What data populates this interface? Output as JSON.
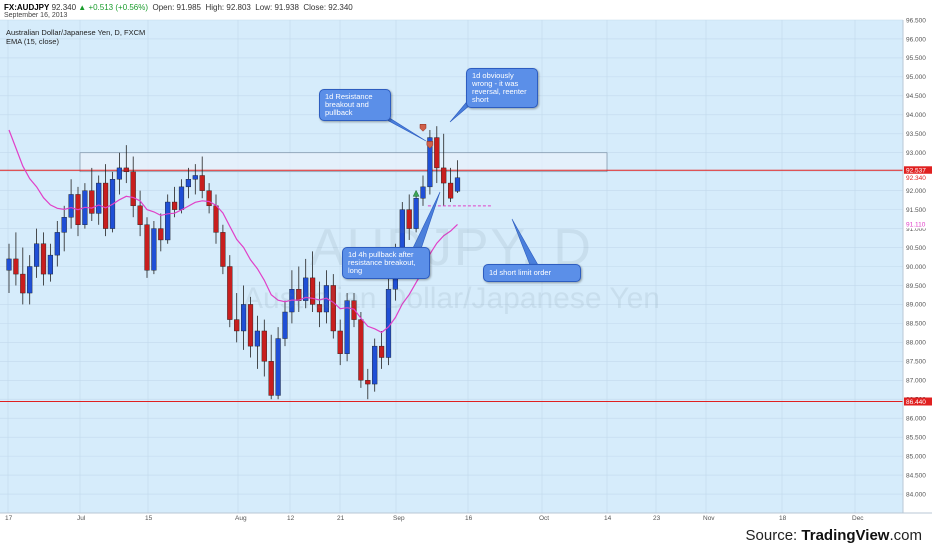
{
  "header": {
    "symbol": "FX:AUDJPY",
    "last": "92.340",
    "change": "+0.513 (+0.56%)",
    "open_label": "Open:",
    "open": "91.985",
    "high_label": "High:",
    "high": "92.803",
    "low_label": "Low:",
    "low": "91.938",
    "close_label": "Close:",
    "close": "92.340",
    "date": "September 16, 2013"
  },
  "legend": {
    "title": "Australian Dollar/Japanese Yen, D, FXCM",
    "ema": "EMA (15, close)"
  },
  "watermark": {
    "symbol": "AUDJPY, D",
    "name": "Australian Dollar/Japanese Yen"
  },
  "annotations": [
    {
      "id": "resistance",
      "text": "1d Resistance breakout and pullback"
    },
    {
      "id": "wrong",
      "text": "1d obviously wrong - it was reversal, reenter short"
    },
    {
      "id": "pullback",
      "text": "1d 4h pullback after resistance breakout, long"
    },
    {
      "id": "limit",
      "text": "1d short limit order"
    }
  ],
  "footer": {
    "source_prefix": "Source: ",
    "source_brand": "TradingView",
    "source_suffix": ".com"
  },
  "colors": {
    "up": "#1f4fd6",
    "down": "#c81e1e",
    "ema": "#e040c8",
    "hline": "#e02020",
    "zone_fill": "#e8f2fb",
    "zone_stroke": "#7a8ea3",
    "background": "#d6ecfb",
    "price_tag": "#e02020",
    "ema_tag": "#e040c8"
  },
  "chart_data": {
    "type": "candlestick",
    "symbol": "FX:AUDJPY",
    "timeframe": "D",
    "y_range": [
      83.5,
      96.5
    ],
    "y_ticks": [
      "96.500",
      "96.000",
      "95.500",
      "95.000",
      "94.500",
      "94.000",
      "93.500",
      "93.000",
      "92.500",
      "92.000",
      "91.500",
      "91.000",
      "90.500",
      "90.000",
      "89.500",
      "89.000",
      "88.500",
      "88.000",
      "87.500",
      "87.000",
      "86.500",
      "86.000",
      "85.500",
      "85.000",
      "84.500",
      "84.000"
    ],
    "x_ticks": [
      "17",
      "Jul",
      "15",
      "Aug",
      "12",
      "21",
      "Sep",
      "16",
      "Oct",
      "14",
      "23",
      "Nov",
      "18",
      "Dec"
    ],
    "price_labels": {
      "resistance_line": "92.537",
      "last_price": "92.340",
      "ema_value": "91.110",
      "support_line": "86.440"
    },
    "horizontal_lines": [
      92.537,
      86.44
    ],
    "resistance_zone": [
      92.5,
      93.0
    ],
    "limit_order_level": 91.6,
    "candles": [
      {
        "o": 89.9,
        "h": 90.6,
        "l": 89.3,
        "c": 90.2
      },
      {
        "o": 90.2,
        "h": 90.9,
        "l": 89.5,
        "c": 89.8
      },
      {
        "o": 89.8,
        "h": 90.5,
        "l": 89.0,
        "c": 89.3
      },
      {
        "o": 89.3,
        "h": 90.3,
        "l": 89.0,
        "c": 90.0
      },
      {
        "o": 90.0,
        "h": 91.0,
        "l": 89.7,
        "c": 90.6
      },
      {
        "o": 90.6,
        "h": 90.9,
        "l": 89.5,
        "c": 89.8
      },
      {
        "o": 89.8,
        "h": 90.6,
        "l": 89.6,
        "c": 90.3
      },
      {
        "o": 90.3,
        "h": 91.2,
        "l": 90.0,
        "c": 90.9
      },
      {
        "o": 90.9,
        "h": 91.6,
        "l": 90.4,
        "c": 91.3
      },
      {
        "o": 91.3,
        "h": 92.3,
        "l": 91.0,
        "c": 91.9
      },
      {
        "o": 91.9,
        "h": 92.1,
        "l": 90.8,
        "c": 91.1
      },
      {
        "o": 91.1,
        "h": 92.2,
        "l": 91.0,
        "c": 92.0
      },
      {
        "o": 92.0,
        "h": 92.6,
        "l": 91.2,
        "c": 91.4
      },
      {
        "o": 91.4,
        "h": 92.4,
        "l": 91.1,
        "c": 92.2
      },
      {
        "o": 92.2,
        "h": 92.7,
        "l": 90.8,
        "c": 91.0
      },
      {
        "o": 91.0,
        "h": 92.5,
        "l": 90.9,
        "c": 92.3
      },
      {
        "o": 92.3,
        "h": 93.0,
        "l": 91.9,
        "c": 92.6
      },
      {
        "o": 92.6,
        "h": 93.2,
        "l": 92.2,
        "c": 92.5
      },
      {
        "o": 92.5,
        "h": 92.9,
        "l": 91.3,
        "c": 91.6
      },
      {
        "o": 91.6,
        "h": 92.0,
        "l": 90.8,
        "c": 91.1
      },
      {
        "o": 91.1,
        "h": 91.3,
        "l": 89.7,
        "c": 89.9
      },
      {
        "o": 89.9,
        "h": 91.2,
        "l": 89.8,
        "c": 91.0
      },
      {
        "o": 91.0,
        "h": 91.4,
        "l": 90.4,
        "c": 90.7
      },
      {
        "o": 90.7,
        "h": 91.9,
        "l": 90.6,
        "c": 91.7
      },
      {
        "o": 91.7,
        "h": 92.1,
        "l": 91.3,
        "c": 91.5
      },
      {
        "o": 91.5,
        "h": 92.3,
        "l": 91.4,
        "c": 92.1
      },
      {
        "o": 92.1,
        "h": 92.6,
        "l": 91.8,
        "c": 92.3
      },
      {
        "o": 92.3,
        "h": 92.7,
        "l": 91.9,
        "c": 92.4
      },
      {
        "o": 92.4,
        "h": 92.9,
        "l": 91.8,
        "c": 92.0
      },
      {
        "o": 92.0,
        "h": 92.2,
        "l": 91.4,
        "c": 91.6
      },
      {
        "o": 91.6,
        "h": 91.9,
        "l": 90.6,
        "c": 90.9
      },
      {
        "o": 90.9,
        "h": 91.1,
        "l": 89.8,
        "c": 90.0
      },
      {
        "o": 90.0,
        "h": 90.3,
        "l": 88.4,
        "c": 88.6
      },
      {
        "o": 88.6,
        "h": 89.3,
        "l": 88.0,
        "c": 88.3
      },
      {
        "o": 88.3,
        "h": 89.5,
        "l": 87.8,
        "c": 89.0
      },
      {
        "o": 89.0,
        "h": 89.2,
        "l": 87.6,
        "c": 87.9
      },
      {
        "o": 87.9,
        "h": 88.7,
        "l": 87.3,
        "c": 88.3
      },
      {
        "o": 88.3,
        "h": 88.6,
        "l": 87.1,
        "c": 87.5
      },
      {
        "o": 87.5,
        "h": 88.2,
        "l": 86.5,
        "c": 86.6
      },
      {
        "o": 86.6,
        "h": 88.4,
        "l": 86.5,
        "c": 88.1
      },
      {
        "o": 88.1,
        "h": 89.1,
        "l": 87.9,
        "c": 88.8
      },
      {
        "o": 88.8,
        "h": 89.9,
        "l": 88.5,
        "c": 89.4
      },
      {
        "o": 89.4,
        "h": 90.0,
        "l": 88.8,
        "c": 89.1
      },
      {
        "o": 89.1,
        "h": 90.2,
        "l": 88.9,
        "c": 89.7
      },
      {
        "o": 89.7,
        "h": 90.4,
        "l": 88.8,
        "c": 89.0
      },
      {
        "o": 89.0,
        "h": 89.6,
        "l": 88.4,
        "c": 88.8
      },
      {
        "o": 88.8,
        "h": 89.9,
        "l": 88.5,
        "c": 89.5
      },
      {
        "o": 89.5,
        "h": 89.8,
        "l": 88.1,
        "c": 88.3
      },
      {
        "o": 88.3,
        "h": 88.6,
        "l": 87.4,
        "c": 87.7
      },
      {
        "o": 87.7,
        "h": 89.3,
        "l": 87.5,
        "c": 89.1
      },
      {
        "o": 89.1,
        "h": 89.3,
        "l": 88.4,
        "c": 88.6
      },
      {
        "o": 88.6,
        "h": 88.8,
        "l": 86.8,
        "c": 87.0
      },
      {
        "o": 87.0,
        "h": 87.3,
        "l": 86.5,
        "c": 86.9
      },
      {
        "o": 86.9,
        "h": 88.1,
        "l": 86.7,
        "c": 87.9
      },
      {
        "o": 87.9,
        "h": 88.3,
        "l": 87.3,
        "c": 87.6
      },
      {
        "o": 87.6,
        "h": 89.7,
        "l": 87.4,
        "c": 89.4
      },
      {
        "o": 89.4,
        "h": 90.6,
        "l": 89.1,
        "c": 90.4
      },
      {
        "o": 90.4,
        "h": 91.7,
        "l": 90.2,
        "c": 91.5
      },
      {
        "o": 91.5,
        "h": 91.9,
        "l": 90.7,
        "c": 91.0
      },
      {
        "o": 91.0,
        "h": 92.0,
        "l": 90.9,
        "c": 91.8
      },
      {
        "o": 91.8,
        "h": 92.4,
        "l": 91.6,
        "c": 92.1
      },
      {
        "o": 92.1,
        "h": 93.6,
        "l": 91.9,
        "c": 93.4
      },
      {
        "o": 93.4,
        "h": 93.7,
        "l": 92.2,
        "c": 92.6
      },
      {
        "o": 92.6,
        "h": 93.5,
        "l": 91.6,
        "c": 92.2
      },
      {
        "o": 92.2,
        "h": 92.6,
        "l": 91.7,
        "c": 91.8
      },
      {
        "o": 91.985,
        "h": 92.803,
        "l": 91.938,
        "c": 92.34
      }
    ],
    "ema_period": 15
  }
}
